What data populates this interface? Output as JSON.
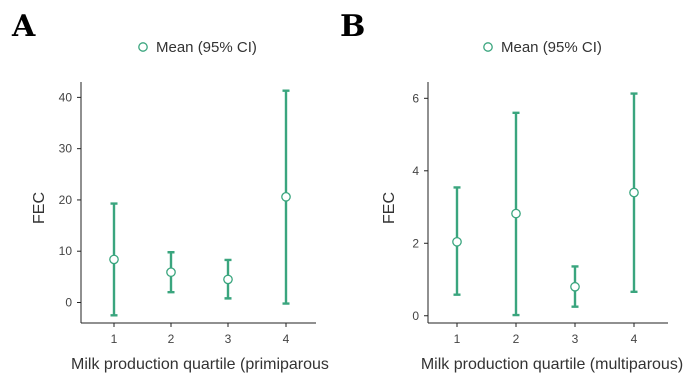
{
  "accent_color": "#3aa57e",
  "chart_data": [
    {
      "panel": "A",
      "type": "scatter",
      "legend": "Mean (95% CI)",
      "legend_position": "top-center",
      "xlabel": "Milk production quartile (primiparous",
      "ylabel": "FEC",
      "categories": [
        "1",
        "2",
        "3",
        "4"
      ],
      "y_ticks": [
        0,
        10,
        20,
        30,
        40
      ],
      "ylim": [
        -4,
        43
      ],
      "grid": false,
      "series": [
        {
          "name": "Mean (95% CI)",
          "mean": [
            8.4,
            5.9,
            4.5,
            20.6
          ],
          "ci_low": [
            -2.5,
            2.0,
            0.8,
            -0.2
          ],
          "ci_high": [
            19.3,
            9.8,
            8.3,
            41.3
          ]
        }
      ]
    },
    {
      "panel": "B",
      "type": "scatter",
      "legend": "Mean (95% CI)",
      "legend_position": "top-center",
      "xlabel": "Milk production quartile (multiparous)",
      "ylabel": "FEC",
      "categories": [
        "1",
        "2",
        "3",
        "4"
      ],
      "y_ticks": [
        0,
        2,
        4,
        6
      ],
      "ylim": [
        -0.2,
        6.45
      ],
      "grid": false,
      "series": [
        {
          "name": "Mean (95% CI)",
          "mean": [
            2.04,
            2.82,
            0.8,
            3.4
          ],
          "ci_low": [
            0.58,
            0.02,
            0.25,
            0.66
          ],
          "ci_high": [
            3.54,
            5.6,
            1.36,
            6.13
          ]
        }
      ]
    }
  ]
}
